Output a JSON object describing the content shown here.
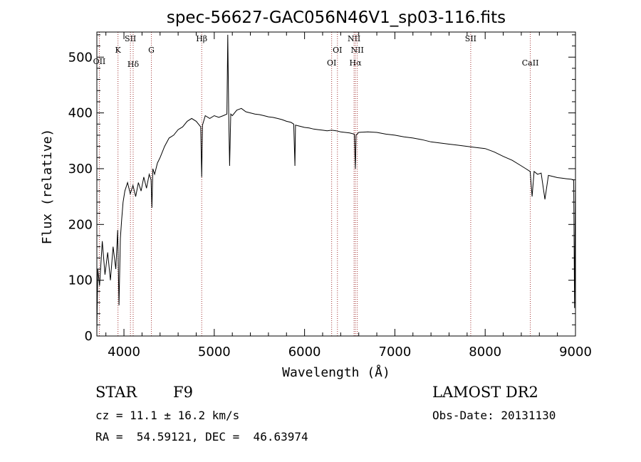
{
  "chart_data": {
    "type": "line",
    "title": "spec-56627-GAC056N46V1_sp03-116.fits",
    "xlabel": "Wavelength (Å)",
    "ylabel": "Flux (relative)",
    "xlim": [
      3700,
      9000
    ],
    "ylim": [
      0,
      545
    ],
    "xticks": [
      4000,
      5000,
      6000,
      7000,
      8000,
      9000
    ],
    "yticks": [
      0,
      100,
      200,
      300,
      400,
      500
    ],
    "grid": false,
    "series": [
      {
        "x": [
          3700,
          3710,
          3730,
          3760,
          3790,
          3820,
          3850,
          3880,
          3910,
          3930,
          3945,
          3960,
          3975,
          3990,
          4010,
          4040,
          4070,
          4100,
          4130,
          4160,
          4190,
          4220,
          4250,
          4280,
          4300,
          4310,
          4320,
          4340,
          4370,
          4400,
          4450,
          4500,
          4550,
          4600,
          4650,
          4700,
          4750,
          4800,
          4850,
          4861,
          4870,
          4900,
          4950,
          5000,
          5050,
          5100,
          5140,
          5150,
          5160,
          5170,
          5183,
          5200,
          5250,
          5300,
          5350,
          5400,
          5450,
          5500,
          5550,
          5600,
          5650,
          5700,
          5750,
          5800,
          5850,
          5880,
          5893,
          5900,
          5950,
          6000,
          6050,
          6100,
          6150,
          6200,
          6250,
          6300,
          6350,
          6400,
          6450,
          6500,
          6550,
          6563,
          6570,
          6600,
          6700,
          6800,
          6900,
          7000,
          7100,
          7200,
          7300,
          7400,
          7500,
          7600,
          7700,
          7800,
          7900,
          8000,
          8100,
          8200,
          8300,
          8400,
          8450,
          8498,
          8520,
          8542,
          8580,
          8620,
          8662,
          8700,
          8750,
          8800,
          8850,
          8900,
          8950,
          8980,
          8990,
          9000
        ],
        "y": [
          10,
          120,
          90,
          170,
          110,
          150,
          100,
          160,
          120,
          190,
          55,
          175,
          210,
          240,
          260,
          275,
          255,
          270,
          250,
          275,
          260,
          285,
          265,
          290,
          280,
          230,
          300,
          290,
          310,
          320,
          340,
          355,
          360,
          370,
          375,
          385,
          390,
          385,
          375,
          285,
          378,
          395,
          390,
          395,
          392,
          395,
          398,
          540,
          400,
          305,
          398,
          395,
          405,
          408,
          402,
          400,
          398,
          397,
          395,
          393,
          392,
          390,
          388,
          385,
          383,
          380,
          305,
          378,
          376,
          374,
          373,
          371,
          370,
          369,
          368,
          369,
          368,
          366,
          365,
          364,
          362,
          300,
          360,
          365,
          366,
          365,
          362,
          360,
          357,
          355,
          352,
          348,
          346,
          344,
          342,
          340,
          338,
          336,
          330,
          322,
          315,
          305,
          300,
          295,
          250,
          295,
          290,
          292,
          245,
          288,
          286,
          284,
          283,
          282,
          281,
          280,
          50,
          280
        ]
      }
    ],
    "line_markers": [
      {
        "label": "OII",
        "x": 3727
      },
      {
        "label": "K",
        "x": 3934
      },
      {
        "label": "SII",
        "x": 4072
      },
      {
        "label": "Hδ",
        "x": 4102
      },
      {
        "label": "G",
        "x": 4304
      },
      {
        "label": "Hβ",
        "x": 4861
      },
      {
        "label": "OI",
        "x": 6300
      },
      {
        "label": "OI",
        "x": 6364
      },
      {
        "label": "NII",
        "x": 6548
      },
      {
        "label": "Hα",
        "x": 6563
      },
      {
        "label": "NII",
        "x": 6584
      },
      {
        "label": "SII",
        "x": 7840
      },
      {
        "label": "CaII",
        "x": 8500
      }
    ]
  },
  "info": {
    "class": "STAR",
    "subclass": "F9",
    "survey": "LAMOST DR2",
    "cz": "cz = 11.1 ± 16.2 km/s",
    "obs_date": "Obs-Date: 20131130",
    "radec": "RA =  54.59121, DEC =  46.63974"
  }
}
